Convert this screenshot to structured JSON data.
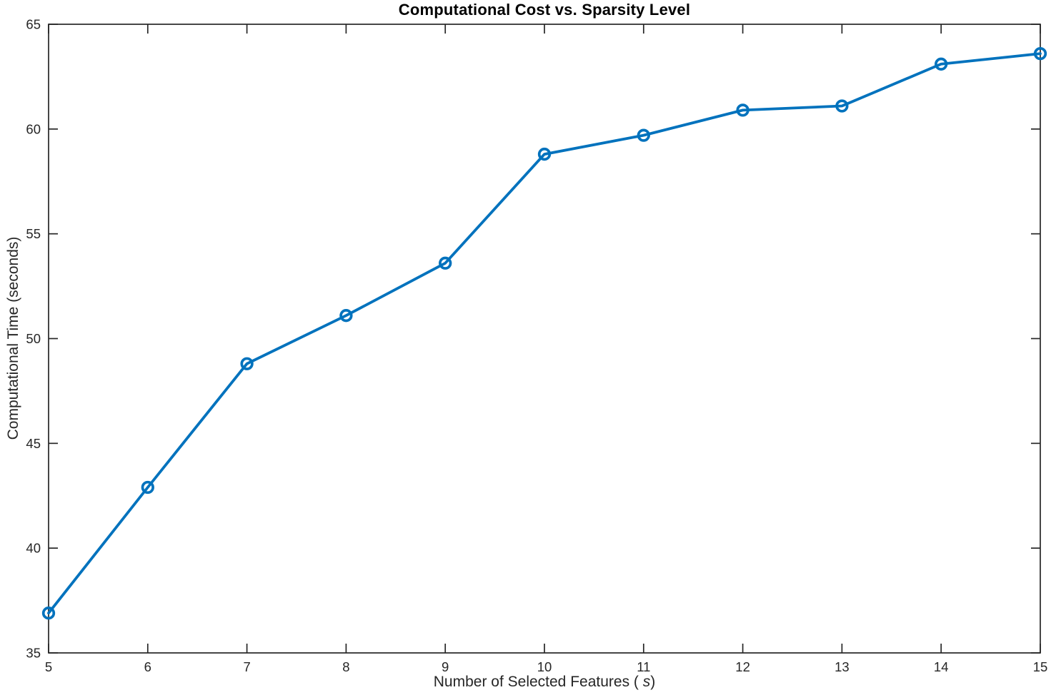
{
  "figure": {
    "title": "Computational Cost vs. Sparsity Level",
    "xlabel_prefix": "Number of Selected Features ( ",
    "xlabel_italic": "s",
    "xlabel_suffix": ")",
    "ylabel": "Computational Time (seconds)"
  },
  "chart_data": {
    "type": "line",
    "title": "Computational Cost vs. Sparsity Level",
    "xlabel": "Number of Selected Features ( s)",
    "ylabel": "Computational Time (seconds)",
    "x": [
      5,
      6,
      7,
      8,
      9,
      10,
      11,
      12,
      13,
      14,
      15
    ],
    "y": [
      36.9,
      42.9,
      48.8,
      51.1,
      53.6,
      58.8,
      59.7,
      60.9,
      61.1,
      63.1,
      63.6
    ],
    "xlim": [
      5,
      15
    ],
    "ylim": [
      35,
      65
    ],
    "xticks": [
      5,
      6,
      7,
      8,
      9,
      10,
      11,
      12,
      13,
      14,
      15
    ],
    "yticks": [
      35,
      40,
      45,
      50,
      55,
      60,
      65
    ],
    "grid": false,
    "legend": "none",
    "box": true,
    "marker": "open-circle",
    "colors": {
      "line": "#0072BD",
      "axis": "#262626",
      "tick_label": "#262626",
      "title": "#000000",
      "background": "#ffffff"
    }
  }
}
